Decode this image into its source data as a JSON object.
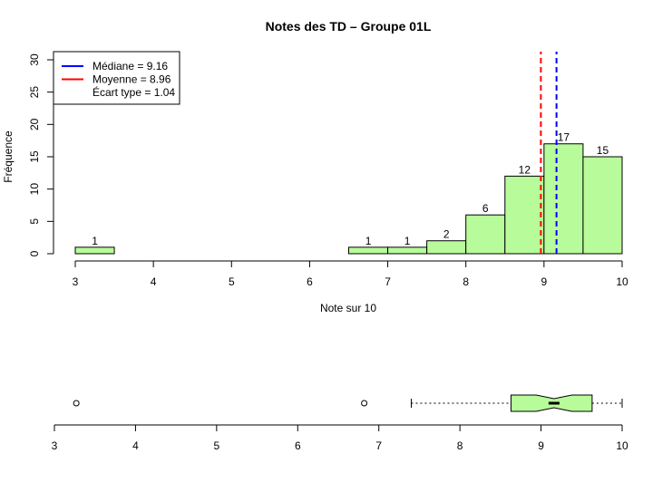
{
  "chart_data": {
    "type": "bar",
    "title": "Notes des TD – Groupe 01L",
    "xlabel": "Note sur 10",
    "ylabel": "Fréquence",
    "xlim": [
      3,
      10
    ],
    "ylim": [
      0,
      30
    ],
    "x_ticks": [
      3,
      4,
      5,
      6,
      7,
      8,
      9,
      10
    ],
    "y_ticks": [
      0,
      5,
      10,
      15,
      20,
      25,
      30
    ],
    "bin_width": 0.5,
    "bins": [
      {
        "start": 3.0,
        "end": 3.5,
        "count": 1
      },
      {
        "start": 3.5,
        "end": 4.0,
        "count": 0
      },
      {
        "start": 4.0,
        "end": 4.5,
        "count": 0
      },
      {
        "start": 4.5,
        "end": 5.0,
        "count": 0
      },
      {
        "start": 5.0,
        "end": 5.5,
        "count": 0
      },
      {
        "start": 5.5,
        "end": 6.0,
        "count": 0
      },
      {
        "start": 6.0,
        "end": 6.5,
        "count": 0
      },
      {
        "start": 6.5,
        "end": 7.0,
        "count": 1
      },
      {
        "start": 7.0,
        "end": 7.5,
        "count": 1
      },
      {
        "start": 7.5,
        "end": 8.0,
        "count": 2
      },
      {
        "start": 8.0,
        "end": 8.5,
        "count": 6
      },
      {
        "start": 8.5,
        "end": 9.0,
        "count": 12
      },
      {
        "start": 9.0,
        "end": 9.5,
        "count": 17
      },
      {
        "start": 9.5,
        "end": 10.0,
        "count": 15
      }
    ],
    "median": 9.16,
    "mean": 8.96,
    "legend": {
      "position": "top-left",
      "entries": [
        {
          "label": "Médiane = 9.16",
          "color": "#0000ff"
        },
        {
          "label": "Moyenne = 8.96",
          "color": "#ff0000"
        },
        {
          "label": "Écart type = 1.04",
          "color": ""
        }
      ]
    },
    "boxplot": {
      "whisker_low": 7.4,
      "q1": 8.63,
      "median": 9.16,
      "q3": 9.63,
      "whisker_high": 10.0,
      "notch_low": 8.94,
      "notch_high": 9.38,
      "outliers": [
        3.27,
        6.82
      ],
      "x_ticks": [
        3,
        4,
        5,
        6,
        7,
        8,
        9,
        10
      ]
    },
    "colors": {
      "fill": "#b8fb9b",
      "median_line": "#0000ff",
      "mean_line": "#ff0000"
    }
  }
}
